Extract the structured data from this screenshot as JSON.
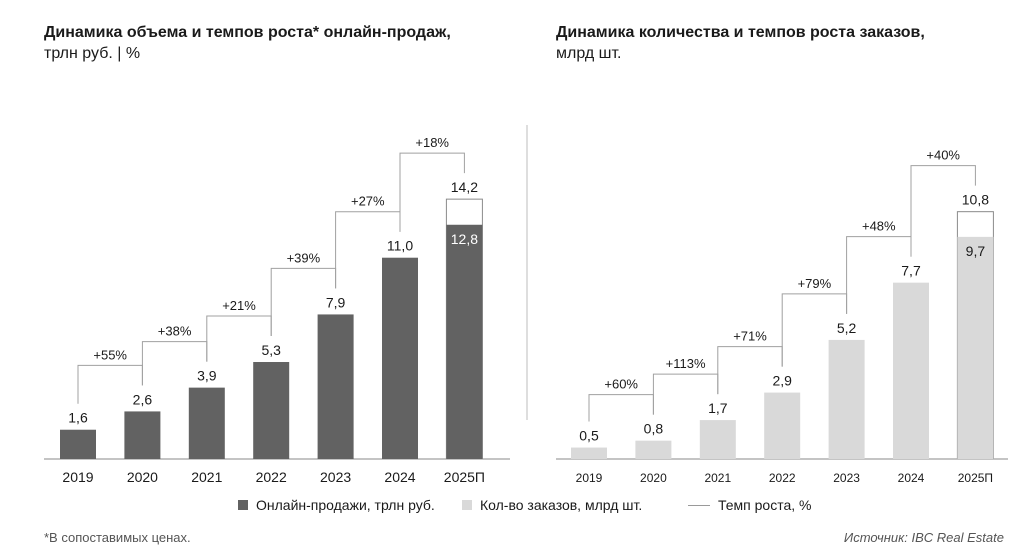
{
  "chart_data": [
    {
      "type": "bar",
      "title": "Динамика объема и темпов роста* онлайн-продаж,",
      "subtitle": "трлн руб. | %",
      "categories": [
        "2019",
        "2020",
        "2021",
        "2022",
        "2023",
        "2024",
        "2025П"
      ],
      "values": [
        1.6,
        2.6,
        3.9,
        5.3,
        7.9,
        11.0,
        14.2
      ],
      "value_labels": [
        "1,6",
        "2,6",
        "3,9",
        "5,3",
        "7,9",
        "11,0",
        "14,2"
      ],
      "partial_value": 12.8,
      "partial_label": "12,8",
      "growth_labels": [
        "+55%",
        "+38%",
        "+21%",
        "+39%",
        "+27%",
        "+18%"
      ],
      "color": "#626262"
    },
    {
      "type": "bar",
      "title": "Динамика количества и темпов роста заказов,",
      "subtitle": "млрд шт.",
      "categories": [
        "2019",
        "2020",
        "2021",
        "2022",
        "2023",
        "2024",
        "2025П"
      ],
      "values": [
        0.5,
        0.8,
        1.7,
        2.9,
        5.2,
        7.7,
        10.8
      ],
      "value_labels": [
        "0,5",
        "0,8",
        "1,7",
        "2,9",
        "5,2",
        "7,7",
        "10,8"
      ],
      "partial_value": 9.7,
      "partial_label": "9,7",
      "growth_labels": [
        "+60%",
        "+113%",
        "+71%",
        "+79%",
        "+48%",
        "+40%"
      ],
      "color": "#d9d9d9"
    }
  ],
  "legend": {
    "sales": "Онлайн-продажи, трлн руб.",
    "orders": "Кол-во заказов, млрд шт.",
    "growth": "Темп роста, %"
  },
  "footnote": "*В сопоставимых ценах.",
  "source": "Источник: IBC Real Estate"
}
